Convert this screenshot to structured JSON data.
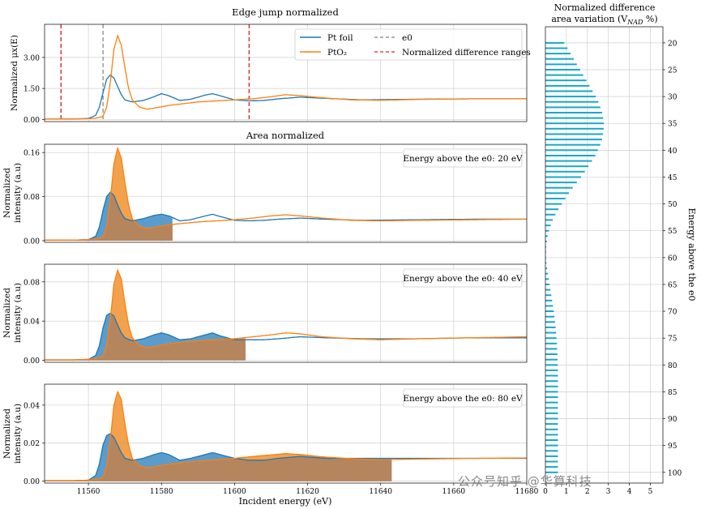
{
  "colors": {
    "pt": "#1f77b4",
    "pto2": "#ff7f0e",
    "e0": "#7f7f7f",
    "range": "#d62728",
    "bar": "#17a8c8",
    "fill_pt": "#3d8cc4",
    "fill_pto2": "#f0922e",
    "fill_overlap": "#b5855e"
  },
  "chart_data": [
    {
      "id": "edge",
      "type": "line",
      "title": "Edge jump normalized",
      "xlabel": "",
      "ylabel": "Normalized μx(E)",
      "xlim": [
        11548,
        11680
      ],
      "ylim": [
        -0.1,
        4.6
      ],
      "yticks": [
        0.0,
        1.5,
        3.0
      ],
      "ytick_labels": [
        "0.00",
        "1.50",
        "3.00"
      ],
      "xticks": [
        11560,
        11580,
        11600,
        11620,
        11640,
        11660,
        11680
      ],
      "e0": 11564,
      "ranges": [
        11552.5,
        11604
      ],
      "series": [
        {
          "name": "Pt foil",
          "key": "pt",
          "x": [
            11548,
            11556,
            11560,
            11562,
            11563,
            11564,
            11565,
            11566,
            11567,
            11568,
            11569,
            11570,
            11572,
            11575,
            11578,
            11580,
            11582,
            11585,
            11588,
            11592,
            11594,
            11596,
            11600,
            11604,
            11608,
            11612,
            11618,
            11625,
            11635,
            11650,
            11665,
            11680
          ],
          "y": [
            0.02,
            0.03,
            0.05,
            0.2,
            0.6,
            1.3,
            1.95,
            2.15,
            2.0,
            1.6,
            1.2,
            0.95,
            0.85,
            0.92,
            1.1,
            1.25,
            1.15,
            0.92,
            0.98,
            1.18,
            1.25,
            1.15,
            0.95,
            0.9,
            0.92,
            1.0,
            1.08,
            1.02,
            0.95,
            0.98,
            1.0,
            1.0
          ]
        },
        {
          "name": "PtO₂",
          "key": "pto2",
          "x": [
            11548,
            11556,
            11560,
            11562,
            11564,
            11565,
            11566,
            11567,
            11568,
            11569,
            11570,
            11571,
            11572,
            11574,
            11576,
            11578,
            11582,
            11590,
            11600,
            11605,
            11610,
            11614,
            11618,
            11624,
            11632,
            11640,
            11650,
            11665,
            11680
          ],
          "y": [
            0.02,
            0.03,
            0.04,
            0.06,
            0.15,
            0.6,
            1.8,
            3.4,
            4.05,
            3.6,
            2.5,
            1.5,
            0.95,
            0.6,
            0.5,
            0.55,
            0.68,
            0.85,
            0.95,
            1.0,
            1.1,
            1.2,
            1.15,
            1.05,
            0.95,
            0.93,
            0.97,
            1.0,
            1.0
          ]
        }
      ],
      "legend": [
        "Pt foil",
        "PtO₂",
        "e0",
        "Normalized difference ranges"
      ],
      "legend_loc": "top-right"
    },
    {
      "id": "area20",
      "type": "area",
      "title": "Area normalized",
      "annotation": "Energy above the e0: 20 eV",
      "ylabel_lines": [
        "Normalized",
        "intensity (a.u)"
      ],
      "xlim": [
        11548,
        11680
      ],
      "ylim": [
        -0.003,
        0.175
      ],
      "yticks": [
        0.0,
        0.08,
        0.16
      ],
      "ytick_labels": [
        "0.00",
        "0.08",
        "0.16"
      ],
      "fill_end": 11583,
      "series": [
        {
          "key": "pt",
          "x": [
            11548,
            11556,
            11560,
            11562,
            11563,
            11564,
            11565,
            11566,
            11567,
            11568,
            11569,
            11570,
            11572,
            11575,
            11578,
            11580,
            11582,
            11585,
            11588,
            11592,
            11594,
            11596,
            11600,
            11604,
            11608,
            11612,
            11618,
            11625,
            11635,
            11650,
            11665,
            11680
          ],
          "y": [
            0.001,
            0.001,
            0.002,
            0.008,
            0.025,
            0.055,
            0.08,
            0.088,
            0.082,
            0.065,
            0.05,
            0.04,
            0.036,
            0.04,
            0.046,
            0.048,
            0.045,
            0.036,
            0.038,
            0.045,
            0.048,
            0.044,
            0.037,
            0.036,
            0.037,
            0.039,
            0.041,
            0.039,
            0.037,
            0.038,
            0.039,
            0.039
          ]
        },
        {
          "key": "pto2",
          "x": [
            11548,
            11556,
            11560,
            11562,
            11564,
            11565,
            11566,
            11567,
            11568,
            11569,
            11570,
            11571,
            11572,
            11574,
            11576,
            11578,
            11582,
            11590,
            11600,
            11605,
            11610,
            11614,
            11618,
            11624,
            11632,
            11640,
            11650,
            11665,
            11680
          ],
          "y": [
            0.001,
            0.001,
            0.002,
            0.003,
            0.007,
            0.025,
            0.075,
            0.14,
            0.168,
            0.15,
            0.105,
            0.065,
            0.04,
            0.026,
            0.022,
            0.024,
            0.029,
            0.034,
            0.038,
            0.041,
            0.045,
            0.047,
            0.045,
            0.041,
            0.037,
            0.036,
            0.037,
            0.038,
            0.039
          ]
        }
      ]
    },
    {
      "id": "area40",
      "type": "area",
      "annotation": "Energy above the e0: 40 eV",
      "ylabel_lines": [
        "Normalized",
        "intensity (a.u)"
      ],
      "xlim": [
        11548,
        11680
      ],
      "ylim": [
        -0.002,
        0.098
      ],
      "yticks": [
        0.0,
        0.04,
        0.08
      ],
      "ytick_labels": [
        "0.00",
        "0.04",
        "0.08"
      ],
      "fill_end": 11603,
      "series": [
        {
          "key": "pt",
          "x": [
            11548,
            11556,
            11560,
            11562,
            11563,
            11564,
            11565,
            11566,
            11567,
            11568,
            11569,
            11570,
            11572,
            11575,
            11578,
            11580,
            11582,
            11585,
            11588,
            11592,
            11594,
            11596,
            11600,
            11604,
            11608,
            11612,
            11618,
            11625,
            11635,
            11650,
            11665,
            11680
          ],
          "y": [
            0.0005,
            0.0005,
            0.001,
            0.005,
            0.015,
            0.033,
            0.046,
            0.048,
            0.045,
            0.036,
            0.028,
            0.023,
            0.02,
            0.022,
            0.026,
            0.028,
            0.026,
            0.021,
            0.022,
            0.026,
            0.028,
            0.025,
            0.021,
            0.021,
            0.021,
            0.022,
            0.024,
            0.023,
            0.022,
            0.022,
            0.023,
            0.023
          ]
        },
        {
          "key": "pto2",
          "x": [
            11548,
            11556,
            11560,
            11562,
            11564,
            11565,
            11566,
            11567,
            11568,
            11569,
            11570,
            11571,
            11572,
            11574,
            11576,
            11578,
            11582,
            11590,
            11600,
            11605,
            11610,
            11614,
            11618,
            11624,
            11632,
            11640,
            11650,
            11665,
            11680
          ],
          "y": [
            0.0005,
            0.0005,
            0.001,
            0.002,
            0.004,
            0.015,
            0.042,
            0.078,
            0.092,
            0.083,
            0.058,
            0.036,
            0.023,
            0.015,
            0.013,
            0.014,
            0.017,
            0.02,
            0.022,
            0.024,
            0.026,
            0.028,
            0.027,
            0.024,
            0.022,
            0.021,
            0.022,
            0.023,
            0.024
          ]
        }
      ]
    },
    {
      "id": "area80",
      "type": "area",
      "annotation": "Energy above the e0: 80 eV",
      "ylabel_lines": [
        "Normalized",
        "intensity (a.u)"
      ],
      "xlabel": "Incident energy (eV)",
      "xlim": [
        11548,
        11680
      ],
      "ylim": [
        -0.001,
        0.051
      ],
      "yticks": [
        0.0,
        0.02,
        0.04
      ],
      "ytick_labels": [
        "0.00",
        "0.02",
        "0.04"
      ],
      "xticks": [
        11560,
        11580,
        11600,
        11620,
        11640,
        11660,
        11680
      ],
      "fill_end": 11643,
      "series": [
        {
          "key": "pt",
          "x": [
            11548,
            11556,
            11560,
            11562,
            11563,
            11564,
            11565,
            11566,
            11567,
            11568,
            11569,
            11570,
            11572,
            11575,
            11578,
            11580,
            11582,
            11585,
            11588,
            11592,
            11594,
            11596,
            11600,
            11604,
            11608,
            11612,
            11618,
            11625,
            11635,
            11650,
            11665,
            11680
          ],
          "y": [
            0.0003,
            0.0003,
            0.0005,
            0.003,
            0.009,
            0.019,
            0.024,
            0.025,
            0.023,
            0.019,
            0.015,
            0.012,
            0.011,
            0.012,
            0.014,
            0.015,
            0.014,
            0.011,
            0.012,
            0.014,
            0.015,
            0.014,
            0.012,
            0.011,
            0.011,
            0.012,
            0.013,
            0.012,
            0.012,
            0.012,
            0.012,
            0.012
          ]
        },
        {
          "key": "pto2",
          "x": [
            11548,
            11556,
            11560,
            11562,
            11564,
            11565,
            11566,
            11567,
            11568,
            11569,
            11570,
            11571,
            11572,
            11574,
            11576,
            11578,
            11582,
            11590,
            11600,
            11605,
            11610,
            11614,
            11618,
            11624,
            11632,
            11640,
            11650,
            11665,
            11680
          ],
          "y": [
            0.0003,
            0.0003,
            0.0005,
            0.001,
            0.002,
            0.008,
            0.022,
            0.04,
            0.047,
            0.043,
            0.03,
            0.019,
            0.012,
            0.008,
            0.007,
            0.0075,
            0.009,
            0.0105,
            0.012,
            0.013,
            0.0138,
            0.0145,
            0.014,
            0.0128,
            0.0118,
            0.0113,
            0.0116,
            0.012,
            0.0122
          ]
        }
      ]
    },
    {
      "id": "vnad",
      "type": "bar",
      "orientation": "horizontal",
      "title_lines": [
        "Normalized difference",
        "area variation (V"
      ],
      "title_sub": "NAD",
      "title_end": " %)",
      "ylabel": "Energy above the e0",
      "xlim": [
        0,
        5.6
      ],
      "ylim": [
        17,
        102
      ],
      "yticks": [
        20,
        25,
        30,
        35,
        40,
        45,
        50,
        55,
        60,
        65,
        70,
        75,
        80,
        85,
        90,
        95,
        100
      ],
      "xtick_labels": [
        "0",
        "1",
        "2",
        "3",
        "4",
        "5"
      ],
      "categories": [
        20,
        21,
        22,
        23,
        24,
        25,
        26,
        27,
        28,
        29,
        30,
        31,
        32,
        33,
        34,
        35,
        36,
        37,
        38,
        39,
        40,
        41,
        42,
        43,
        44,
        45,
        46,
        47,
        48,
        49,
        50,
        51,
        52,
        53,
        54,
        55,
        56,
        57,
        58,
        59,
        60,
        61,
        62,
        63,
        64,
        65,
        66,
        67,
        68,
        69,
        70,
        71,
        72,
        73,
        74,
        75,
        76,
        77,
        78,
        79,
        80,
        81,
        82,
        83,
        84,
        85,
        86,
        87,
        88,
        89,
        90,
        91,
        92,
        93,
        94,
        95,
        96,
        97,
        98,
        99,
        100
      ],
      "values": [
        0.9,
        1.05,
        1.2,
        1.35,
        1.5,
        1.65,
        1.8,
        1.95,
        2.1,
        2.25,
        2.4,
        2.52,
        2.62,
        2.7,
        2.75,
        2.78,
        2.78,
        2.75,
        2.7,
        2.62,
        2.5,
        2.38,
        2.22,
        2.05,
        1.88,
        1.7,
        1.5,
        1.3,
        1.12,
        0.95,
        0.78,
        0.62,
        0.48,
        0.35,
        0.25,
        0.17,
        0.11,
        0.07,
        0.04,
        0.03,
        0.03,
        0.05,
        0.08,
        0.12,
        0.16,
        0.2,
        0.24,
        0.28,
        0.32,
        0.36,
        0.4,
        0.43,
        0.46,
        0.49,
        0.51,
        0.53,
        0.55,
        0.56,
        0.57,
        0.58,
        0.59,
        0.6,
        0.6,
        0.6,
        0.6,
        0.6,
        0.6,
        0.6,
        0.6,
        0.6,
        0.6,
        0.6,
        0.6,
        0.6,
        0.6,
        0.6,
        0.6,
        0.6,
        0.6,
        0.6,
        0.6
      ]
    }
  ],
  "watermark": "公众号知乎 @华算科技"
}
